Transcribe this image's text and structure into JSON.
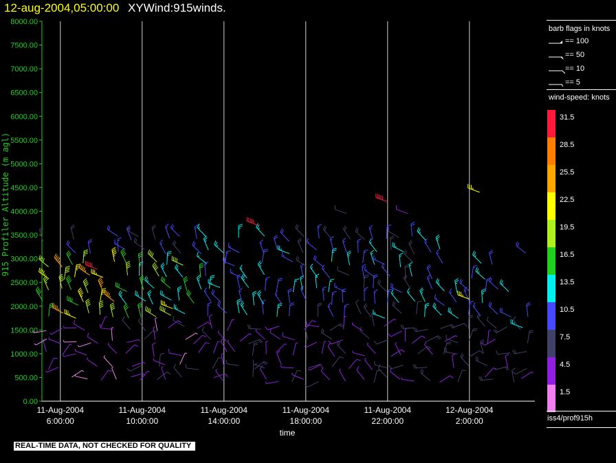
{
  "header": {
    "timestamp": "12-aug-2004,05:00:00",
    "plot_name": "XYWind:915winds."
  },
  "notice": "REAL-TIME DATA, NOT CHECKED FOR QUALITY",
  "barb_legend": {
    "title": "barb flags in knots",
    "items": [
      "== 100",
      "== 50",
      "== 10",
      "== 5"
    ]
  },
  "speed_scale": {
    "title": "wind-speed: knots",
    "levels": [
      {
        "label": "31.5",
        "color": "#ff1a3c"
      },
      {
        "label": "28.5",
        "color": "#ff8000"
      },
      {
        "label": "25.5",
        "color": "#ffa500"
      },
      {
        "label": "22.5",
        "color": "#ffff00"
      },
      {
        "label": "19.5",
        "color": "#b0f020"
      },
      {
        "label": "16.5",
        "color": "#20d020"
      },
      {
        "label": "13.5",
        "color": "#00f0f0"
      },
      {
        "label": "10.5",
        "color": "#4848ff"
      },
      {
        "label": "7.5",
        "color": "#404068"
      },
      {
        "label": "4.5",
        "color": "#9020e0"
      },
      {
        "label": "1.5",
        "color": "#f080f0"
      }
    ]
  },
  "source_label": "iss4/prof915h",
  "chart_data": {
    "type": "scatter",
    "title": "12-aug-2004,05:00:00 XYWind:915winds.",
    "xlabel": "time",
    "ylabel": "915 Profiler Altitude (m agl)",
    "ylim": [
      0,
      8000
    ],
    "yticks": [
      "8000.00",
      "7500.00",
      "7000.00",
      "6500.00",
      "6000.00",
      "5500.00",
      "5000.00",
      "4500.00",
      "4000.00",
      "3500.00",
      "3000.00",
      "2500.00",
      "2000.00",
      "1500.00",
      "1000.00",
      "500.00",
      "0.00"
    ],
    "xticks": [
      {
        "date": "11-Aug-2004",
        "time": "6:00:00"
      },
      {
        "date": "11-Aug-2004",
        "time": "10:00:00"
      },
      {
        "date": "11-Aug-2004",
        "time": "14:00:00"
      },
      {
        "date": "11-Aug-2004",
        "time": "18:00:00"
      },
      {
        "date": "11-Aug-2004",
        "time": "22:00:00"
      },
      {
        "date": "12-Aug-2004",
        "time": "2:00:00"
      }
    ],
    "grid": "vertical",
    "time_range_hours": [
      5.1,
      29.2
    ],
    "tick_hours": [
      6,
      10,
      14,
      18,
      22,
      26
    ],
    "profile_hours": [
      5.3,
      6.0,
      6.7,
      7.3,
      8.0,
      8.7,
      9.3,
      10.0,
      10.7,
      11.3,
      12.0,
      12.7,
      13.3,
      14.0,
      14.7,
      15.3,
      16.0,
      16.7,
      17.3,
      18.0,
      18.7,
      19.3,
      20.0,
      20.7,
      21.3,
      22.0,
      22.7,
      23.3,
      24.0,
      24.7,
      25.3,
      26.0,
      26.7,
      27.3,
      28.0,
      28.7
    ],
    "altitudes_m": [
      450,
      720,
      990,
      1260,
      1530,
      1800,
      2070,
      2340,
      2610,
      2880,
      3150,
      3420
    ],
    "speed_by_hour_and_altitude": [
      {
        "hours": "5-9",
        "low_m": "400-1600",
        "speed_kt": "2-6",
        "mid_m": "1800-2900",
        "mid_speed_kt": "17-25"
      },
      {
        "hours": "9-13",
        "low_m": "400-1600",
        "speed_kt": "2-7",
        "mid_m": "1800-2900",
        "mid_speed_kt": "12-19"
      },
      {
        "hours": "13-18",
        "low_m": "400-1600",
        "speed_kt": "3-8",
        "mid_m": "1800-3600",
        "mid_speed_kt": "9-14"
      },
      {
        "hours": "18-24",
        "low_m": "400-1600",
        "speed_kt": "3-8",
        "mid_m": "1800-3200",
        "mid_speed_kt": "7-13"
      },
      {
        "hours": "24-29",
        "low_m": "400-1600",
        "speed_kt": "4-9",
        "mid_m": "1500-2300",
        "mid_speed_kt": "9-14"
      }
    ],
    "isolated_obs": [
      {
        "hour": 7.8,
        "alt_m": 2780,
        "speed_kt": 30
      },
      {
        "hour": 15.7,
        "alt_m": 3700,
        "speed_kt": 31
      },
      {
        "hour": 22.0,
        "alt_m": 4200,
        "speed_kt": 31
      },
      {
        "hour": 26.5,
        "alt_m": 4400,
        "speed_kt": 22
      },
      {
        "hour": 23.0,
        "alt_m": 3950,
        "speed_kt": 5
      },
      {
        "hour": 20.0,
        "alt_m": 3950,
        "speed_kt": 6
      },
      {
        "hour": 11.5,
        "alt_m": 1950,
        "speed_kt": 21
      },
      {
        "hour": 26.0,
        "alt_m": 2150,
        "speed_kt": 22
      },
      {
        "hour": 28.6,
        "alt_m": 1550,
        "speed_kt": 14
      }
    ]
  }
}
